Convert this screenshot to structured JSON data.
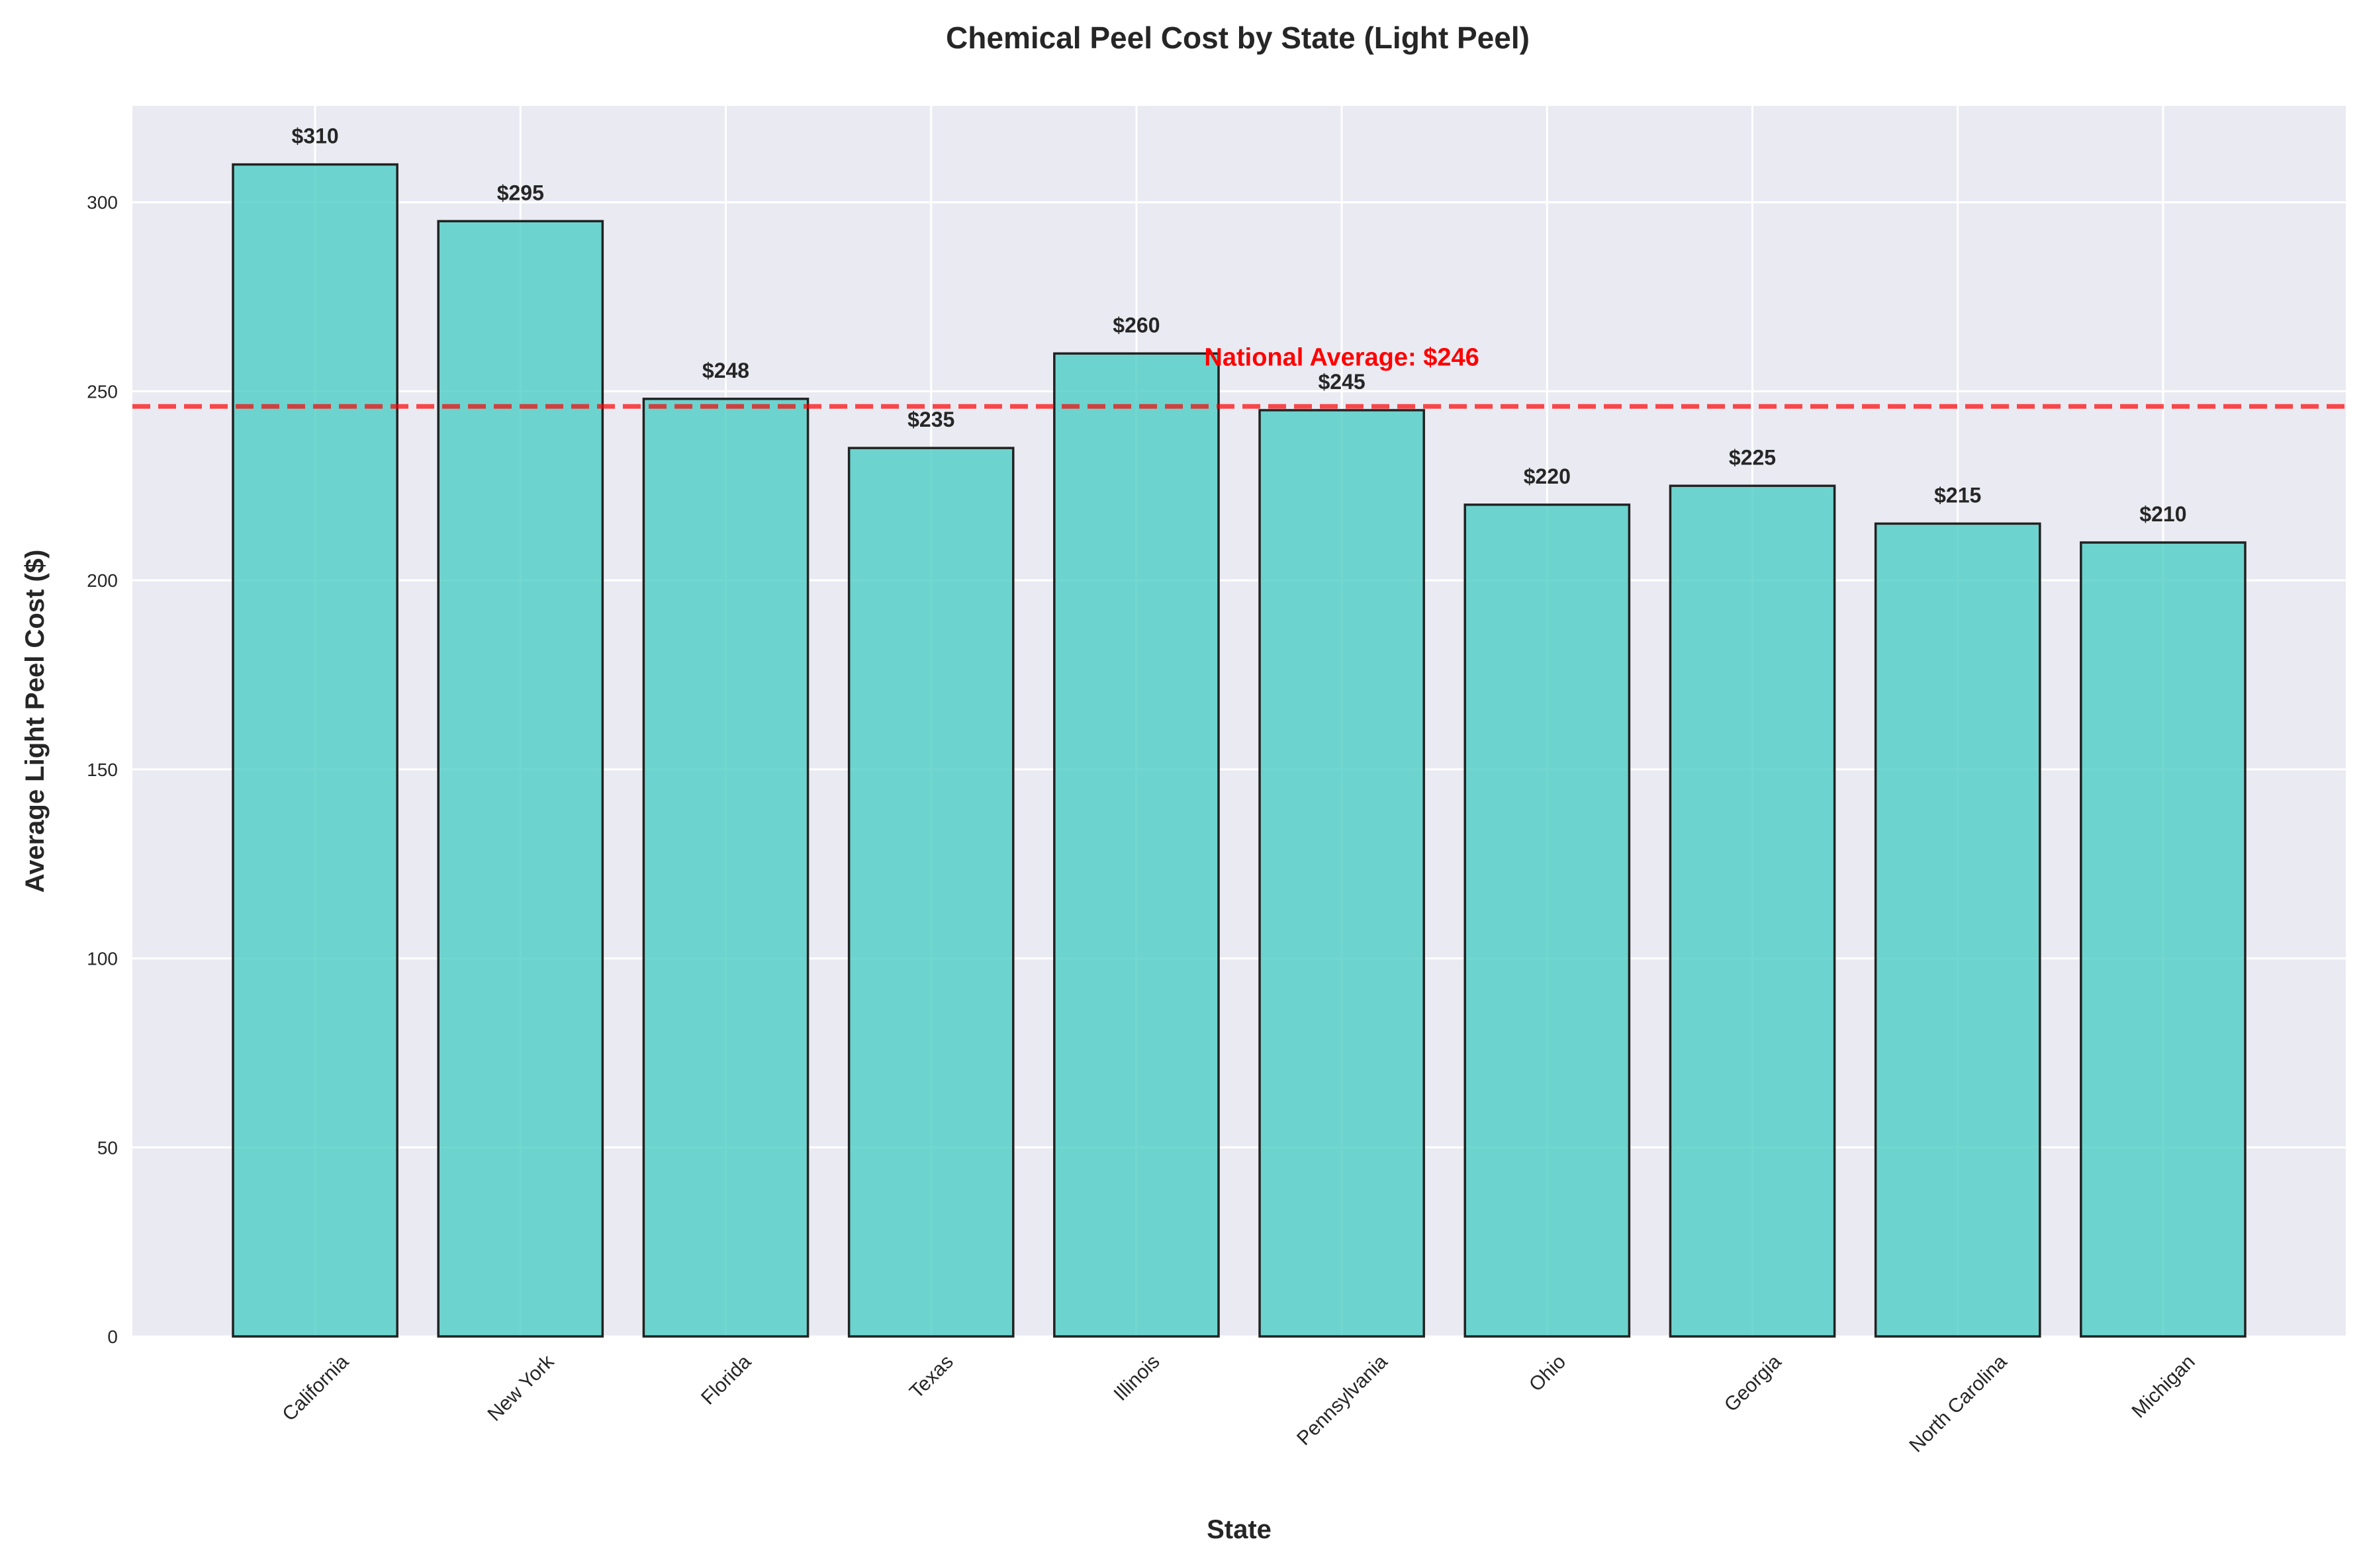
{
  "chart_data": {
    "type": "bar",
    "title": "Chemical Peel Cost by State (Light Peel)",
    "xlabel": "State",
    "ylabel": "Average Light Peel Cost ($)",
    "categories": [
      "California",
      "New York",
      "Florida",
      "Texas",
      "Illinois",
      "Pennsylvania",
      "Ohio",
      "Georgia",
      "North Carolina",
      "Michigan"
    ],
    "values": [
      310,
      295,
      248,
      235,
      260,
      245,
      220,
      225,
      215,
      210
    ],
    "data_labels": [
      "$310",
      "$295",
      "$248",
      "$235",
      "$260",
      "$245",
      "$220",
      "$225",
      "$215",
      "$210"
    ],
    "ylim": [
      0,
      325.5
    ],
    "yticks": [
      0,
      50,
      100,
      150,
      200,
      250,
      300
    ],
    "grid": true,
    "reference_line": {
      "value": 246,
      "label": "National Average: $246",
      "color": "#ff0000",
      "style": "dashed"
    },
    "colors": {
      "bar": "#4ecdc4",
      "bar_edge": "#222222",
      "background": "#eaeaf2",
      "grid": "#ffffff",
      "text": "#262626"
    }
  }
}
